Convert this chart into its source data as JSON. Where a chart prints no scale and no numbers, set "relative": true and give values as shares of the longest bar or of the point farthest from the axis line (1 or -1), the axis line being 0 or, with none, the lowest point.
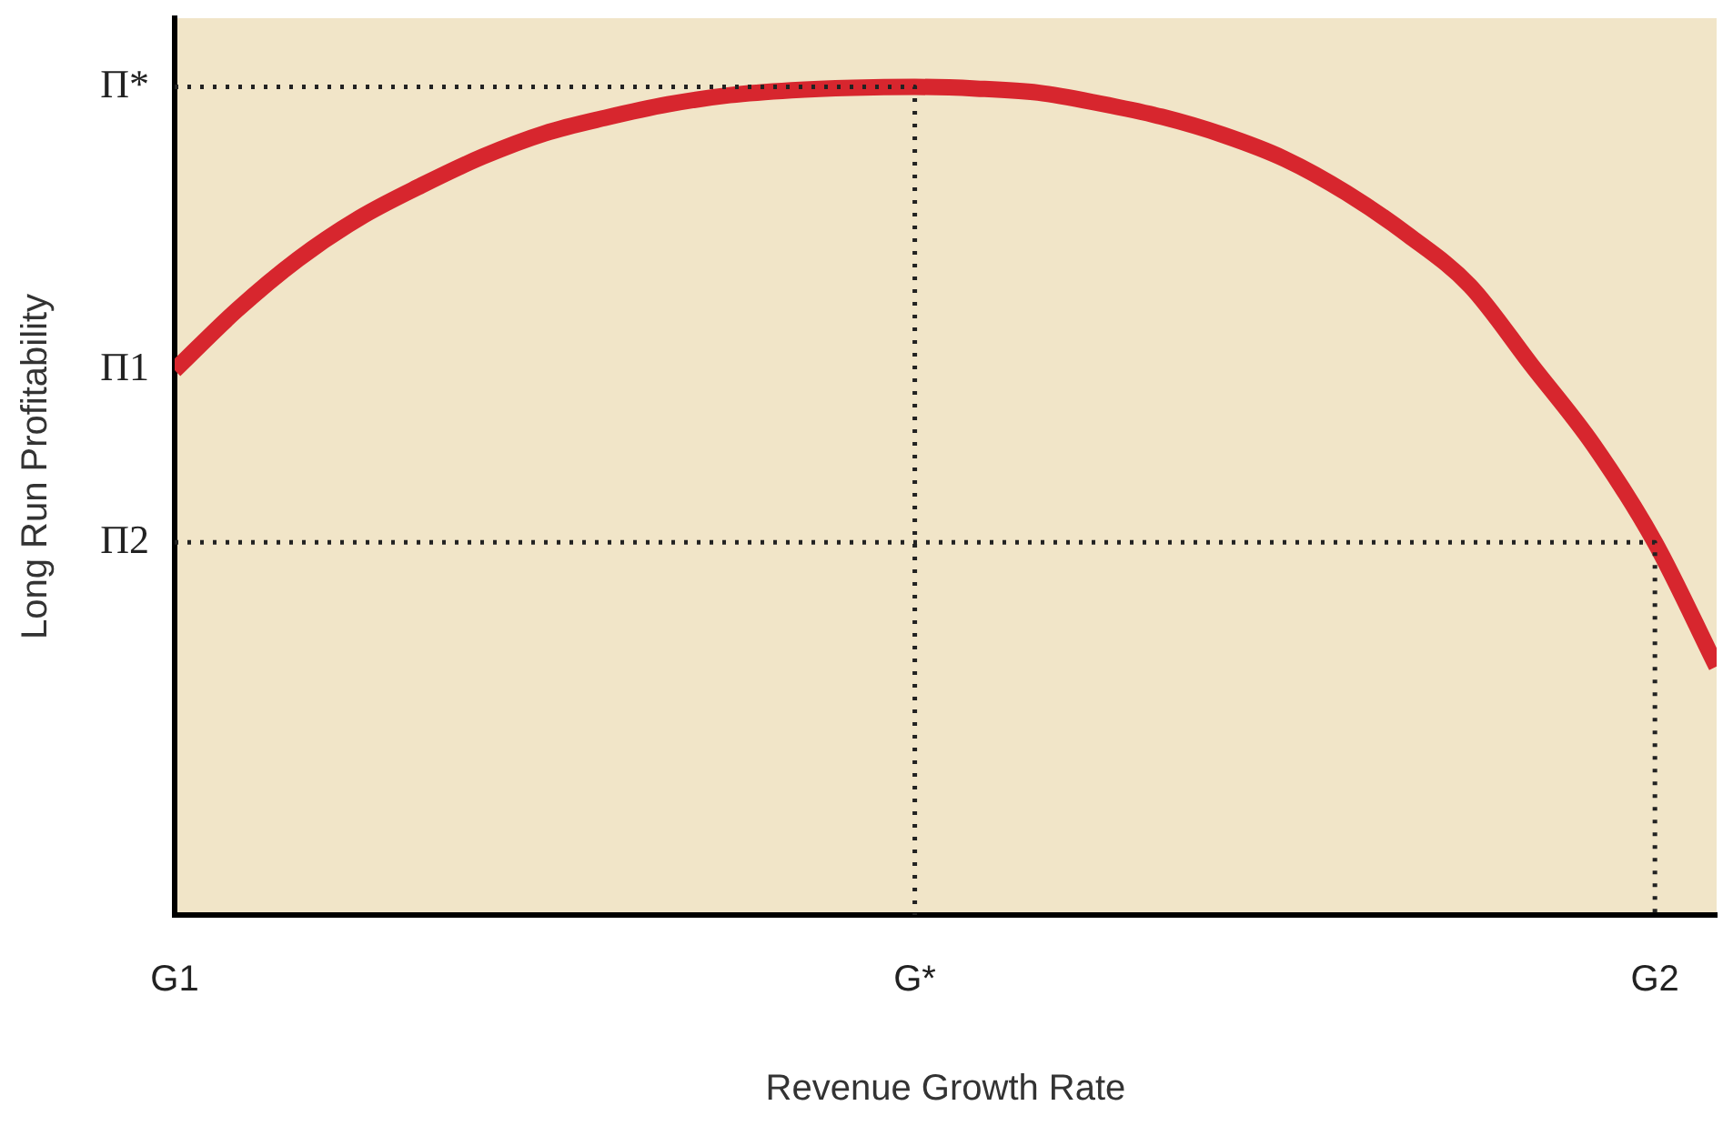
{
  "chart_data": {
    "type": "line",
    "relative": true,
    "xlabel": "Revenue Growth Rate",
    "ylabel": "Long Run Profitability",
    "categories": [
      "G1",
      null,
      null,
      null,
      null,
      null,
      null,
      null,
      null,
      null,
      null,
      null,
      "G*",
      null,
      null,
      null,
      null,
      null,
      null,
      null,
      null,
      null,
      null,
      null,
      "G2",
      null
    ],
    "marker": "none",
    "annotations": [
      {
        "text": "Π*",
        "x": "G1",
        "y": 1
      },
      {
        "text": "Π1",
        "x": "G1",
        "y": 0.658
      },
      {
        "text": "Π2",
        "x": "G1",
        "y": 0.45
      }
    ],
    "series": [
      {
        "color": "#d7262e",
        "line_style": "solid",
        "values": [
          0.658,
          0.73,
          0.792,
          0.842,
          0.881,
          0.916,
          0.944,
          0.963,
          0.979,
          0.99,
          0.996,
          0.999,
          1,
          0.998,
          0.993,
          0.98,
          0.964,
          0.942,
          0.913,
          0.872,
          0.821,
          0.76,
          0.664,
          0.568,
          0.45,
          0.3
        ]
      },
      {
        "color": "#222222",
        "line_style": "dotted",
        "x": [
          "G1",
          "G*",
          "G*"
        ],
        "values": [
          1,
          1,
          0
        ]
      },
      {
        "color": "#222222",
        "line_style": "dotted",
        "x": [
          "G1",
          "G2",
          "G2"
        ],
        "values": [
          0.45,
          0.45,
          0
        ]
      }
    ]
  }
}
